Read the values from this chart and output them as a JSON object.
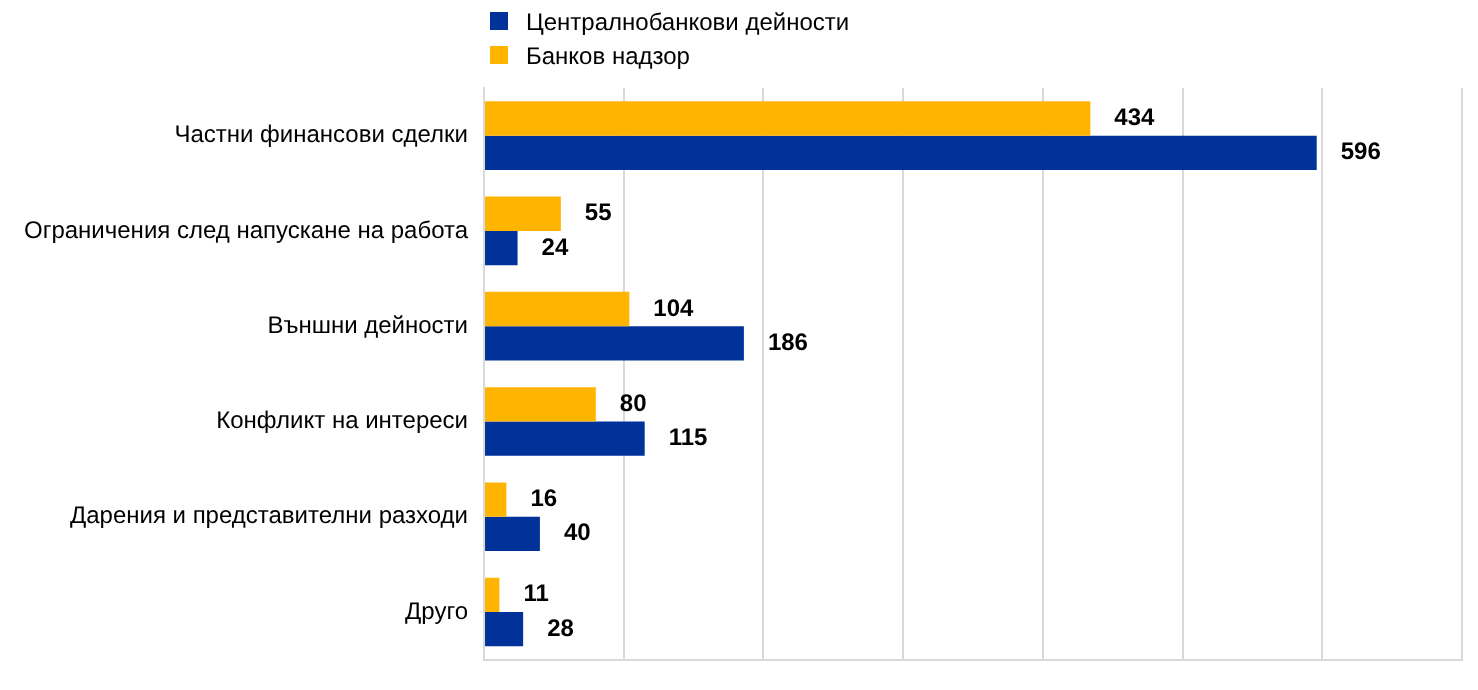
{
  "chart_data": {
    "type": "bar",
    "orientation": "horizontal",
    "categories": [
      "Частни финансови сделки",
      "Ограничения след напускане на работа",
      "Външни дейности",
      "Конфликт на интереси",
      "Дарения и представителни разходи",
      "Друго"
    ],
    "series": [
      {
        "name": "Централнобанкови дейности",
        "color": "#003299",
        "values": [
          596,
          24,
          186,
          115,
          40,
          28
        ]
      },
      {
        "name": "Банков надзор",
        "color": "#ffb400",
        "values": [
          434,
          55,
          104,
          80,
          16,
          11
        ]
      }
    ],
    "xlim": [
      0,
      700
    ],
    "xticks": [
      {
        "value": 0,
        "label": null
      },
      {
        "value": 100,
        "label": null
      },
      {
        "value": 200,
        "label": null
      },
      {
        "value": 300,
        "label": null
      },
      {
        "value": 400,
        "label": null
      },
      {
        "value": 500,
        "label": null
      },
      {
        "value": 600,
        "label": null
      },
      {
        "value": 700,
        "label": null
      }
    ],
    "tick_labels": "y",
    "grid": "x",
    "legend": "top left",
    "data_labels": true
  }
}
